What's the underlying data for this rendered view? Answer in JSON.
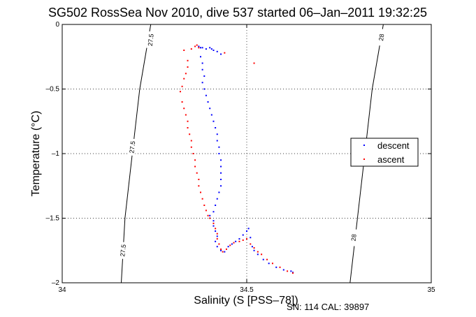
{
  "chart_data": {
    "type": "scatter",
    "title": "SG502 RossSea Nov 2010, dive 537 started 06–Jan–2011 19:32:25",
    "xlabel": "Salinity (S [PSS–78])",
    "ylabel": "Temperature (°C)",
    "xlim": [
      34,
      35
    ],
    "ylim": [
      -2,
      0
    ],
    "xticks": [
      34,
      34.5,
      35
    ],
    "xtick_labels": [
      "34",
      "34.5",
      "35"
    ],
    "yticks": [
      0,
      -0.5,
      -1,
      -1.5,
      -2
    ],
    "ytick_labels": [
      "0",
      "–0.5",
      "–1",
      "–1.5",
      "–2"
    ],
    "grid": true,
    "legend_position": "right",
    "footer": "SN: 114  CAL: 39897",
    "contours": [
      {
        "label": "27.5",
        "points": [
          [
            34.24,
            0.0
          ],
          [
            34.21,
            -0.5
          ],
          [
            34.19,
            -1.0
          ],
          [
            34.17,
            -1.5
          ],
          [
            34.16,
            -2.0
          ]
        ],
        "label_positions": [
          [
            34.24,
            -0.12
          ],
          [
            34.19,
            -0.95
          ],
          [
            34.165,
            -1.75
          ]
        ]
      },
      {
        "label": "28",
        "points": [
          [
            34.87,
            0.0
          ],
          [
            34.84,
            -0.5
          ],
          [
            34.82,
            -1.0
          ],
          [
            34.8,
            -1.5
          ],
          [
            34.78,
            -2.0
          ]
        ],
        "label_positions": [
          [
            34.865,
            -0.1
          ],
          [
            34.79,
            -1.65
          ]
        ]
      }
    ],
    "series": [
      {
        "name": "descent",
        "color": "#0000ff",
        "points": [
          [
            34.37,
            -0.17
          ],
          [
            34.375,
            -0.18
          ],
          [
            34.38,
            -0.18
          ],
          [
            34.39,
            -0.19
          ],
          [
            34.4,
            -0.18
          ],
          [
            34.405,
            -0.19
          ],
          [
            34.41,
            -0.2
          ],
          [
            34.42,
            -0.21
          ],
          [
            34.43,
            -0.23
          ],
          [
            34.375,
            -0.25
          ],
          [
            34.38,
            -0.3
          ],
          [
            34.38,
            -0.35
          ],
          [
            34.385,
            -0.4
          ],
          [
            34.38,
            -0.45
          ],
          [
            34.385,
            -0.5
          ],
          [
            34.39,
            -0.55
          ],
          [
            34.395,
            -0.6
          ],
          [
            34.4,
            -0.65
          ],
          [
            34.405,
            -0.7
          ],
          [
            34.41,
            -0.75
          ],
          [
            34.415,
            -0.8
          ],
          [
            34.42,
            -0.85
          ],
          [
            34.42,
            -0.9
          ],
          [
            34.425,
            -0.95
          ],
          [
            34.425,
            -1.0
          ],
          [
            34.43,
            -1.05
          ],
          [
            34.43,
            -1.1
          ],
          [
            34.43,
            -1.15
          ],
          [
            34.43,
            -1.2
          ],
          [
            34.43,
            -1.25
          ],
          [
            34.425,
            -1.3
          ],
          [
            34.42,
            -1.35
          ],
          [
            34.415,
            -1.4
          ],
          [
            34.41,
            -1.45
          ],
          [
            34.4,
            -1.48
          ],
          [
            34.41,
            -1.52
          ],
          [
            34.41,
            -1.56
          ],
          [
            34.415,
            -1.6
          ],
          [
            34.42,
            -1.64
          ],
          [
            34.415,
            -1.68
          ],
          [
            34.42,
            -1.72
          ],
          [
            34.43,
            -1.75
          ],
          [
            34.44,
            -1.76
          ],
          [
            34.45,
            -1.72
          ],
          [
            34.46,
            -1.7
          ],
          [
            34.47,
            -1.68
          ],
          [
            34.48,
            -1.66
          ],
          [
            34.49,
            -1.63
          ],
          [
            34.5,
            -1.6
          ],
          [
            34.505,
            -1.58
          ],
          [
            34.51,
            -1.65
          ],
          [
            34.515,
            -1.72
          ],
          [
            34.52,
            -1.75
          ],
          [
            34.53,
            -1.78
          ],
          [
            34.545,
            -1.82
          ],
          [
            34.56,
            -1.85
          ],
          [
            34.58,
            -1.88
          ],
          [
            34.6,
            -1.9
          ],
          [
            34.62,
            -1.91
          ],
          [
            34.625,
            -1.92
          ]
        ]
      },
      {
        "name": "ascent",
        "color": "#ff0000",
        "points": [
          [
            34.33,
            -0.2
          ],
          [
            34.35,
            -0.19
          ],
          [
            34.36,
            -0.17
          ],
          [
            34.365,
            -0.16
          ],
          [
            34.37,
            -0.18
          ],
          [
            34.44,
            -0.22
          ],
          [
            34.52,
            -0.3
          ],
          [
            34.34,
            -0.28
          ],
          [
            34.34,
            -0.33
          ],
          [
            34.335,
            -0.38
          ],
          [
            34.33,
            -0.42
          ],
          [
            34.325,
            -0.48
          ],
          [
            34.32,
            -0.52
          ],
          [
            34.325,
            -0.6
          ],
          [
            34.33,
            -0.65
          ],
          [
            34.335,
            -0.7
          ],
          [
            34.34,
            -0.75
          ],
          [
            34.34,
            -0.8
          ],
          [
            34.345,
            -0.85
          ],
          [
            34.35,
            -0.9
          ],
          [
            34.35,
            -0.95
          ],
          [
            34.355,
            -1.0
          ],
          [
            34.36,
            -1.05
          ],
          [
            34.36,
            -1.1
          ],
          [
            34.365,
            -1.15
          ],
          [
            34.37,
            -1.2
          ],
          [
            34.37,
            -1.25
          ],
          [
            34.375,
            -1.3
          ],
          [
            34.38,
            -1.35
          ],
          [
            34.385,
            -1.4
          ],
          [
            34.39,
            -1.44
          ],
          [
            34.395,
            -1.48
          ],
          [
            34.4,
            -1.5
          ],
          [
            34.41,
            -1.54
          ],
          [
            34.415,
            -1.58
          ],
          [
            34.42,
            -1.62
          ],
          [
            34.42,
            -1.66
          ],
          [
            34.425,
            -1.7
          ],
          [
            34.43,
            -1.74
          ],
          [
            34.435,
            -1.76
          ],
          [
            34.445,
            -1.74
          ],
          [
            34.455,
            -1.71
          ],
          [
            34.465,
            -1.69
          ],
          [
            34.48,
            -1.68
          ],
          [
            34.49,
            -1.67
          ],
          [
            34.5,
            -1.66
          ],
          [
            34.51,
            -1.7
          ],
          [
            34.52,
            -1.73
          ],
          [
            34.53,
            -1.76
          ],
          [
            34.54,
            -1.78
          ],
          [
            34.555,
            -1.82
          ],
          [
            34.57,
            -1.85
          ],
          [
            34.59,
            -1.88
          ],
          [
            34.61,
            -1.91
          ],
          [
            34.625,
            -1.925
          ]
        ]
      }
    ]
  }
}
